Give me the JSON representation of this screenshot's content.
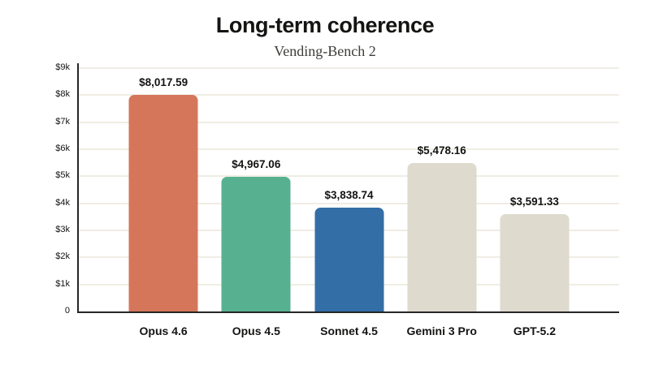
{
  "page": {
    "background": "#ffffff"
  },
  "chart_data": {
    "type": "bar",
    "title": "Long-term coherence",
    "subtitle": "Vending-Bench 2",
    "categories": [
      "Opus 4.6",
      "Opus 4.5",
      "Sonnet 4.5",
      "Gemini 3 Pro",
      "GPT-5.2"
    ],
    "values": [
      8017.59,
      4967.06,
      3838.74,
      5478.16,
      3591.33
    ],
    "value_labels": [
      "$8,017.59",
      "$4,967.06",
      "$3,838.74",
      "$5,478.16",
      "$3,591.33"
    ],
    "bar_colors": [
      "#D5765A",
      "#57B190",
      "#336EA6",
      "#DEDACE",
      "#DEDACE"
    ],
    "ylim": [
      0,
      9000
    ],
    "yticks": [
      {
        "label": "$9k",
        "value": 9000
      },
      {
        "label": "$8k",
        "value": 8000
      },
      {
        "label": "$7k",
        "value": 7000
      },
      {
        "label": "$6k",
        "value": 6000
      },
      {
        "label": "$5k",
        "value": 5000
      },
      {
        "label": "$4k",
        "value": 4000
      },
      {
        "label": "$3k",
        "value": 3000
      },
      {
        "label": "$2k",
        "value": 2000
      },
      {
        "label": "$1k",
        "value": 1000
      },
      {
        "label": "0",
        "value": 0
      }
    ],
    "grid": "horizontal",
    "legend": "none",
    "axis_color": "#262625",
    "gridline_color": "#F0EDE4",
    "text_color": "#141413"
  }
}
